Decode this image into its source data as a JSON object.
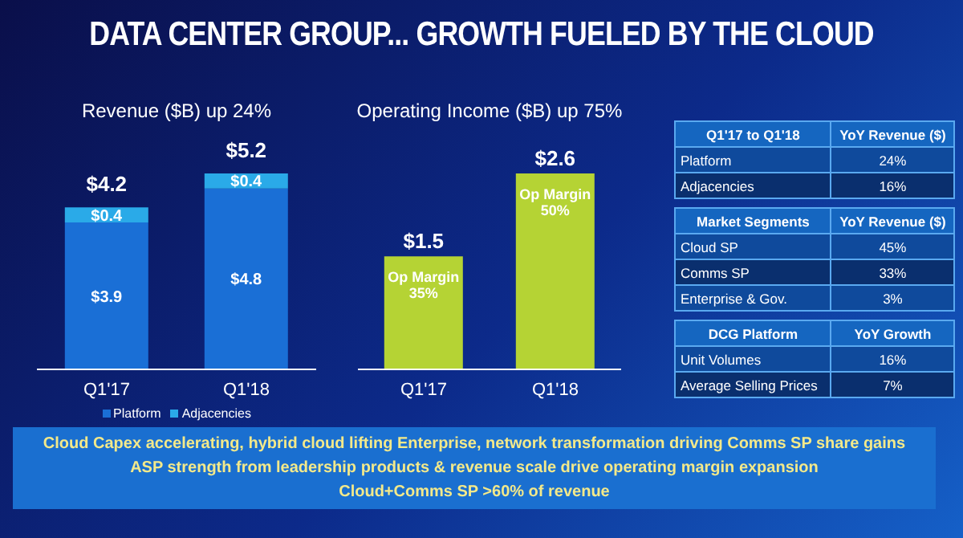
{
  "chart_data": [
    {
      "type": "bar",
      "title": "DATA CENTER GROUP... GROWTH FUELED BY THE CLOUD",
      "subtitle": "Revenue ($B) up 24%",
      "categories": [
        "Q1'17",
        "Q1'18"
      ],
      "stacked": true,
      "legend": "bottom",
      "totals": [
        "$4.2",
        "$5.2"
      ],
      "series": [
        {
          "name": "Platform",
          "color": "#1a6fd6",
          "values": [
            3.9,
            4.8
          ],
          "value_labels": [
            "$3.9",
            "$4.8"
          ]
        },
        {
          "name": "Adjacencies",
          "color": "#2aaae8",
          "values": [
            0.4,
            0.4
          ],
          "value_labels": [
            "$0.4",
            "$0.4"
          ]
        }
      ],
      "annotations": [
        "Cloud Capex accelerating, hybrid cloud lifting Enterprise, network transformation driving Comms SP share gains",
        "ASP strength from leadership products & revenue scale drive operating margin expansion",
        "Cloud+Comms SP >60% of revenue"
      ]
    },
    {
      "type": "bar",
      "subtitle": "Operating Income ($B) up 75%",
      "categories": [
        "Q1'17",
        "Q1'18"
      ],
      "series": [
        {
          "color": "#b5d334",
          "values": [
            1.5,
            2.6
          ],
          "value_labels": [
            "$1.5",
            "$2.6"
          ]
        }
      ],
      "annotations": [
        "Op Margin 35%",
        "Op Margin 50%"
      ]
    },
    {
      "type": "other",
      "annotations": [
        "Q1'17 to Q1'18",
        "YoY Revenue ($)",
        "Platform",
        "24%",
        "Adjacencies",
        "16%",
        "Market Segments",
        "YoY Revenue ($)",
        "Cloud SP",
        "45%",
        "Comms SP",
        "33%",
        "Enterprise & Gov.",
        "3%",
        "DCG Platform",
        "YoY Growth",
        "Unit Volumes",
        "16%",
        "Average Selling Prices",
        "7%"
      ]
    }
  ]
}
